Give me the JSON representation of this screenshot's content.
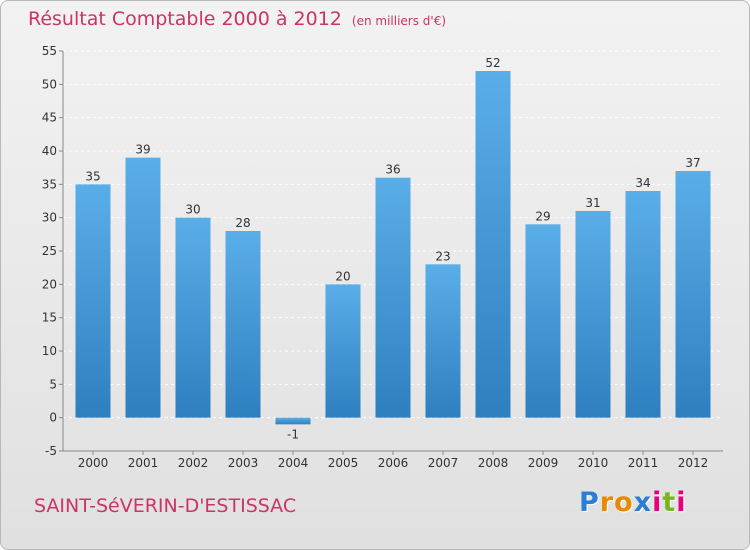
{
  "header": {
    "title": "Résultat Comptable 2000 à 2012",
    "subtitle": "(en milliers d'€)"
  },
  "footer": {
    "commune": "SAINT-SéVERIN-D'ESTISSAC",
    "logo_letters": [
      "P",
      "r",
      "o",
      "x",
      "i",
      "t",
      "i"
    ],
    "logo_colors": [
      "#2a7fd4",
      "#e68a00",
      "#e68a00",
      "#2a7fd4",
      "#e6007e",
      "#7ab51d",
      "#e6007e"
    ]
  },
  "colors": {
    "title": "#cc3366",
    "bar_top": "#5aaee8",
    "bar_bottom": "#2e7fbf",
    "grid": "#ffffff",
    "axis": "#888888"
  },
  "chart_data": {
    "type": "bar",
    "categories": [
      "2000",
      "2001",
      "2002",
      "2003",
      "2004",
      "2005",
      "2006",
      "2007",
      "2008",
      "2009",
      "2010",
      "2011",
      "2012"
    ],
    "values": [
      35,
      39,
      30,
      28,
      -1,
      20,
      36,
      23,
      52,
      29,
      31,
      34,
      37
    ],
    "title": "Résultat Comptable 2000 à 2012",
    "subtitle": "(en milliers d'€)",
    "ylim": [
      -5,
      55
    ],
    "yticks": [
      -5,
      0,
      5,
      10,
      15,
      20,
      25,
      30,
      35,
      40,
      45,
      50,
      55
    ],
    "grid": true,
    "legend": "none"
  }
}
